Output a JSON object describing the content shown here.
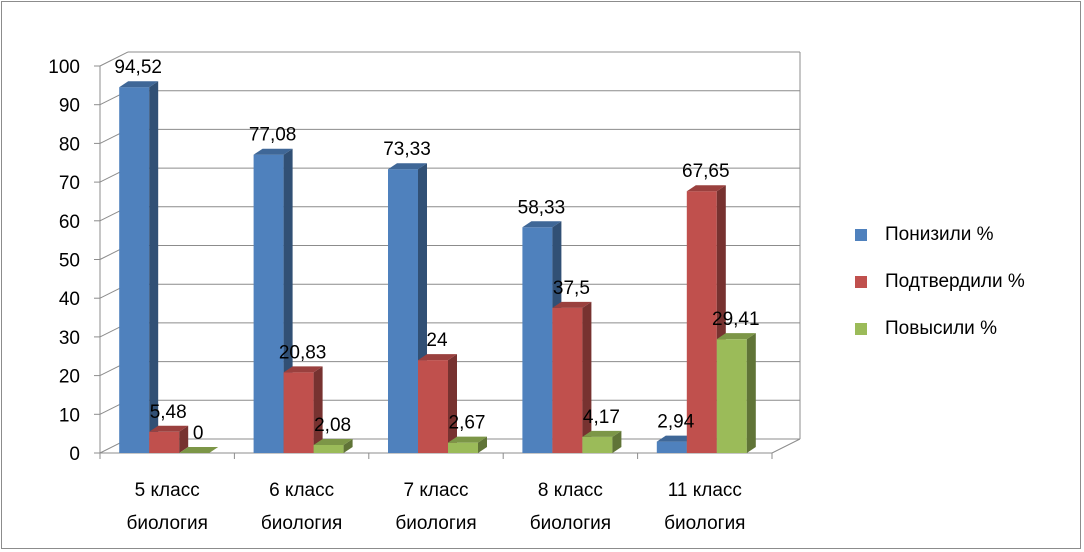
{
  "chart_data": {
    "type": "bar",
    "categories": [
      [
        "5 класс",
        "биология"
      ],
      [
        "6 класс",
        "биология"
      ],
      [
        "7 класс",
        "биология"
      ],
      [
        "8 класс",
        "биология"
      ],
      [
        "11 класс",
        "биология"
      ]
    ],
    "series": [
      {
        "name": "Понизили %",
        "color": "#4f81bd",
        "values": [
          94.52,
          77.08,
          73.33,
          58.33,
          2.94
        ],
        "labels": [
          "94,52",
          "77,08",
          "73,33",
          "58,33",
          "2,94"
        ]
      },
      {
        "name": "Подтвердили %",
        "color": "#c0504d",
        "values": [
          5.48,
          20.83,
          24,
          37.5,
          67.65
        ],
        "labels": [
          "5,48",
          "20,83",
          "24",
          "37,5",
          "67,65"
        ]
      },
      {
        "name": "Повысили %",
        "color": "#9bbb59",
        "values": [
          0,
          2.08,
          2.67,
          4.17,
          29.41
        ],
        "labels": [
          "0",
          "2,08",
          "2,67",
          "4,17",
          "29,41"
        ]
      }
    ],
    "yticks": [
      "0",
      "10",
      "20",
      "30",
      "40",
      "50",
      "60",
      "70",
      "80",
      "90",
      "100"
    ],
    "ylim": [
      0,
      100
    ],
    "grid": true,
    "style": "3d-clustered-column",
    "legend_position": "right"
  }
}
